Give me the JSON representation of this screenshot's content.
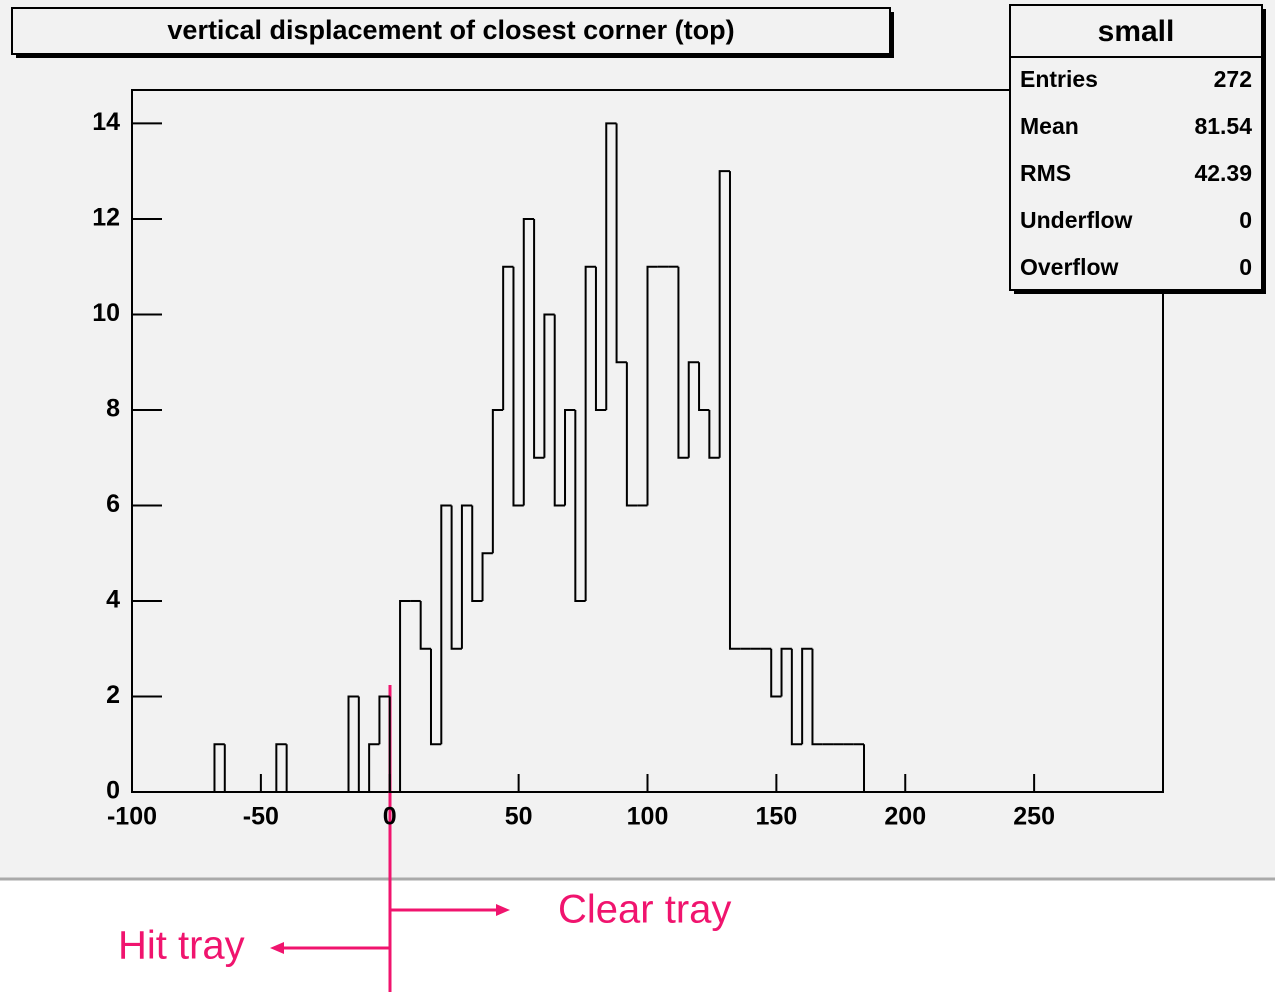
{
  "chart_data": {
    "type": "histogram",
    "title": "vertical displacement of closest corner (top)",
    "bins": [
      -100,
      -96,
      -92,
      -88,
      -84,
      -80,
      -76,
      -72,
      -68,
      -64,
      -60,
      -56,
      -52,
      -48,
      -44,
      -40,
      -36,
      -32,
      -28,
      -24,
      -20,
      -16,
      -12,
      -8,
      -4,
      0,
      4,
      8,
      12,
      16,
      20,
      24,
      28,
      32,
      36,
      40,
      44,
      48,
      52,
      56,
      60,
      64,
      68,
      72,
      76,
      80,
      84,
      88,
      92,
      96,
      100,
      104,
      108,
      112,
      116,
      120,
      124,
      128,
      132,
      136,
      140,
      144,
      148,
      152,
      156,
      160,
      164,
      168,
      172,
      176,
      180,
      184,
      188,
      192,
      196,
      200,
      204,
      208,
      212,
      216,
      220,
      224,
      228,
      232,
      236,
      240,
      244,
      248,
      252,
      256,
      260,
      264,
      268,
      272,
      276,
      280,
      284,
      288,
      292,
      296,
      300
    ],
    "values": [
      0,
      0,
      0,
      0,
      0,
      0,
      0,
      0,
      1,
      0,
      0,
      0,
      0,
      0,
      1,
      0,
      0,
      0,
      0,
      0,
      0,
      2,
      0,
      1,
      2,
      0,
      4,
      4,
      3,
      1,
      6,
      3,
      6,
      4,
      5,
      8,
      11,
      6,
      12,
      7,
      10,
      6,
      8,
      4,
      11,
      8,
      14,
      9,
      6,
      6,
      11,
      11,
      11,
      7,
      9,
      8,
      7,
      13,
      3,
      3,
      3,
      3,
      2,
      3,
      1,
      3,
      1,
      1,
      1,
      1,
      1,
      0,
      0,
      0,
      0,
      0,
      0,
      0,
      0,
      0,
      0,
      0,
      0,
      0,
      0,
      0,
      0,
      0,
      0,
      0,
      0,
      0,
      0,
      0,
      0,
      0,
      0,
      0,
      0,
      0
    ],
    "color": "#000000",
    "xlim": [
      -100,
      300
    ],
    "xticks": [
      -100,
      -50,
      0,
      50,
      100,
      150,
      200,
      250
    ],
    "ylim": [
      0,
      14.7
    ],
    "yticks": [
      0,
      2,
      4,
      6,
      8,
      10,
      12,
      14
    ],
    "stats": {
      "title": "small",
      "rows": [
        [
          "Entries",
          272
        ],
        [
          "Mean",
          81.54
        ],
        [
          "RMS",
          42.39
        ],
        [
          "Underflow",
          0
        ],
        [
          "Overflow",
          0
        ]
      ]
    },
    "annotations": [
      "Clear tray",
      "Hit tray"
    ]
  }
}
